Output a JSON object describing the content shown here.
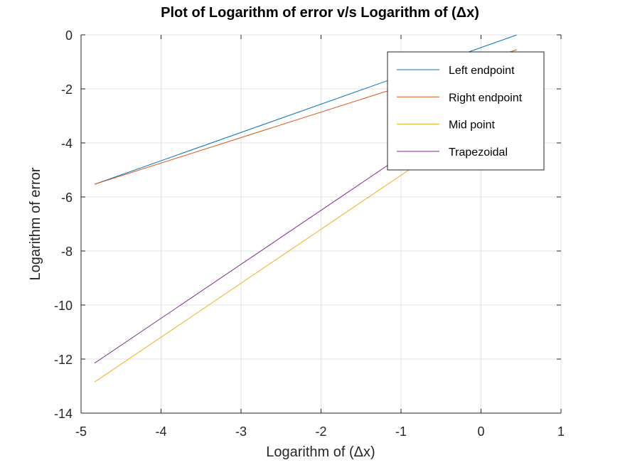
{
  "chart_data": {
    "type": "line",
    "title": "Plot of Logarithm of error v/s Logarithm of (Δx)",
    "xlabel": "Logarithm of (Δx)",
    "ylabel": "Logarithm of error",
    "xlim": [
      -5,
      1
    ],
    "ylim": [
      -14,
      0
    ],
    "xticks": [
      "-5",
      "-4",
      "-3",
      "-2",
      "-1",
      "0",
      "1"
    ],
    "yticks": [
      "0",
      "-2",
      "-4",
      "-6",
      "-8",
      "-10",
      "-12",
      "-14"
    ],
    "grid": true,
    "legend_position": "top-right",
    "series": [
      {
        "name": "Left endpoint",
        "color": "#0072BD",
        "x": [
          -4.83,
          0.45
        ],
        "y": [
          -5.53,
          0.0
        ]
      },
      {
        "name": "Right endpoint",
        "color": "#D95319",
        "x": [
          -4.83,
          0.45
        ],
        "y": [
          -5.53,
          -0.55
        ]
      },
      {
        "name": "Mid point",
        "color": "#EDB120",
        "x": [
          -4.83,
          0.45
        ],
        "y": [
          -12.85,
          -2.3
        ]
      },
      {
        "name": "Trapezoidal",
        "color": "#7E2F8E",
        "x": [
          -4.83,
          0.45
        ],
        "y": [
          -12.15,
          -1.6
        ]
      }
    ]
  }
}
